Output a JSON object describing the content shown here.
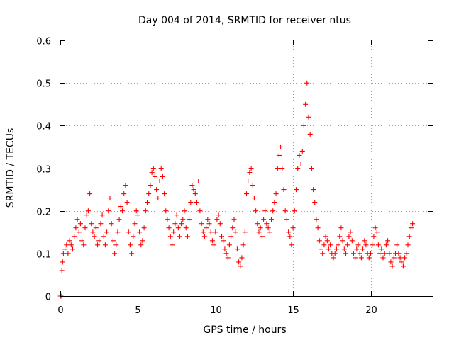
{
  "chart_data": {
    "type": "scatter",
    "title": "Day 004 of 2014, SRMTID for receiver ntus",
    "xlabel": "GPS time / hours",
    "ylabel": "SRMTID / TECUs",
    "xlim": [
      0,
      24
    ],
    "ylim": [
      0,
      0.6
    ],
    "grid": true,
    "marker": "+",
    "color": "#ff0000",
    "x_ticks": [
      0,
      5,
      10,
      15,
      20
    ],
    "y_ticks": [
      0,
      0.1,
      0.2,
      0.3,
      0.4,
      0.5,
      0.6
    ],
    "x_tick_labels": [
      "0",
      "5",
      "10",
      "15",
      "20"
    ],
    "y_tick_labels": [
      "0",
      "0.1",
      "0.2",
      "0.3",
      "0.4",
      "0.5",
      "0.6"
    ],
    "series": [
      {
        "name": "ntus",
        "x": [
          0.0,
          0.05,
          0.1,
          0.15,
          0.2,
          0.3,
          0.4,
          0.5,
          0.6,
          0.7,
          0.8,
          0.9,
          1.0,
          1.1,
          1.2,
          1.3,
          1.4,
          1.5,
          1.6,
          1.7,
          1.8,
          1.9,
          2.0,
          2.1,
          2.2,
          2.3,
          2.4,
          2.5,
          2.6,
          2.7,
          2.8,
          2.9,
          3.0,
          3.1,
          3.2,
          3.3,
          3.4,
          3.5,
          3.6,
          3.7,
          3.8,
          3.9,
          4.0,
          4.1,
          4.2,
          4.3,
          4.4,
          4.5,
          4.6,
          4.7,
          4.8,
          4.9,
          5.0,
          5.1,
          5.2,
          5.3,
          5.4,
          5.5,
          5.6,
          5.7,
          5.8,
          5.9,
          6.0,
          6.1,
          6.2,
          6.3,
          6.4,
          6.5,
          6.6,
          6.7,
          6.8,
          6.9,
          7.0,
          7.1,
          7.2,
          7.3,
          7.4,
          7.5,
          7.6,
          7.7,
          7.8,
          7.9,
          8.0,
          8.1,
          8.2,
          8.3,
          8.4,
          8.5,
          8.6,
          8.7,
          8.8,
          8.9,
          9.0,
          9.1,
          9.2,
          9.3,
          9.4,
          9.5,
          9.6,
          9.7,
          9.8,
          9.9,
          10.0,
          10.1,
          10.2,
          10.3,
          10.4,
          10.5,
          10.6,
          10.7,
          10.8,
          10.9,
          11.0,
          11.1,
          11.2,
          11.3,
          11.4,
          11.5,
          11.6,
          11.7,
          11.8,
          11.9,
          12.0,
          12.1,
          12.2,
          12.3,
          12.4,
          12.5,
          12.6,
          12.7,
          12.8,
          12.9,
          13.0,
          13.1,
          13.2,
          13.3,
          13.4,
          13.5,
          13.6,
          13.7,
          13.8,
          13.9,
          14.0,
          14.1,
          14.2,
          14.3,
          14.4,
          14.5,
          14.6,
          14.7,
          14.8,
          14.9,
          15.0,
          15.1,
          15.2,
          15.3,
          15.4,
          15.5,
          15.6,
          15.7,
          15.8,
          15.9,
          16.0,
          16.1,
          16.2,
          16.3,
          16.4,
          16.5,
          16.6,
          16.7,
          16.8,
          16.9,
          17.0,
          17.1,
          17.2,
          17.3,
          17.4,
          17.5,
          17.6,
          17.7,
          17.8,
          17.9,
          18.0,
          18.1,
          18.2,
          18.3,
          18.4,
          18.5,
          18.6,
          18.7,
          18.8,
          18.9,
          19.0,
          19.1,
          19.2,
          19.3,
          19.4,
          19.5,
          19.6,
          19.7,
          19.8,
          19.9,
          20.0,
          20.1,
          20.2,
          20.3,
          20.4,
          20.5,
          20.6,
          20.7,
          20.8,
          20.9,
          21.0,
          21.1,
          21.2,
          21.3,
          21.4,
          21.5,
          21.6,
          21.7,
          21.8,
          21.9,
          22.0,
          22.1,
          22.2,
          22.3,
          22.4,
          22.5,
          22.6,
          22.7
        ],
        "y": [
          0.0,
          0.0,
          0.06,
          0.08,
          0.1,
          0.11,
          0.12,
          0.1,
          0.13,
          0.12,
          0.11,
          0.14,
          0.16,
          0.18,
          0.15,
          0.17,
          0.13,
          0.12,
          0.16,
          0.19,
          0.2,
          0.24,
          0.17,
          0.15,
          0.14,
          0.16,
          0.12,
          0.13,
          0.17,
          0.19,
          0.14,
          0.12,
          0.15,
          0.2,
          0.23,
          0.17,
          0.13,
          0.1,
          0.12,
          0.15,
          0.18,
          0.21,
          0.2,
          0.24,
          0.26,
          0.22,
          0.15,
          0.12,
          0.1,
          0.14,
          0.17,
          0.2,
          0.19,
          0.15,
          0.12,
          0.13,
          0.16,
          0.2,
          0.22,
          0.24,
          0.26,
          0.29,
          0.3,
          0.28,
          0.25,
          0.23,
          0.27,
          0.3,
          0.28,
          0.24,
          0.2,
          0.18,
          0.16,
          0.14,
          0.12,
          0.15,
          0.17,
          0.19,
          0.16,
          0.14,
          0.17,
          0.18,
          0.2,
          0.16,
          0.14,
          0.18,
          0.22,
          0.26,
          0.25,
          0.24,
          0.22,
          0.27,
          0.2,
          0.17,
          0.15,
          0.14,
          0.16,
          0.18,
          0.17,
          0.15,
          0.13,
          0.12,
          0.15,
          0.18,
          0.19,
          0.17,
          0.14,
          0.13,
          0.11,
          0.1,
          0.09,
          0.12,
          0.14,
          0.16,
          0.18,
          0.15,
          0.11,
          0.08,
          0.07,
          0.09,
          0.12,
          0.15,
          0.24,
          0.27,
          0.29,
          0.3,
          0.26,
          0.23,
          0.2,
          0.17,
          0.15,
          0.16,
          0.14,
          0.18,
          0.2,
          0.17,
          0.16,
          0.15,
          0.18,
          0.2,
          0.22,
          0.24,
          0.3,
          0.33,
          0.35,
          0.3,
          0.25,
          0.2,
          0.18,
          0.15,
          0.14,
          0.12,
          0.16,
          0.2,
          0.25,
          0.3,
          0.33,
          0.31,
          0.34,
          0.4,
          0.45,
          0.5,
          0.42,
          0.38,
          0.3,
          0.25,
          0.22,
          0.18,
          0.16,
          0.13,
          0.11,
          0.1,
          0.12,
          0.14,
          0.13,
          0.11,
          0.12,
          0.1,
          0.09,
          0.1,
          0.11,
          0.12,
          0.14,
          0.16,
          0.13,
          0.11,
          0.1,
          0.12,
          0.14,
          0.15,
          0.13,
          0.1,
          0.09,
          0.11,
          0.12,
          0.1,
          0.09,
          0.11,
          0.13,
          0.12,
          0.1,
          0.09,
          0.1,
          0.12,
          0.14,
          0.16,
          0.15,
          0.12,
          0.1,
          0.11,
          0.09,
          0.1,
          0.12,
          0.13,
          0.1,
          0.08,
          0.07,
          0.09,
          0.1,
          0.12,
          0.1,
          0.09,
          0.08,
          0.07,
          0.09,
          0.1,
          0.12,
          0.14,
          0.16,
          0.17
        ]
      }
    ]
  }
}
